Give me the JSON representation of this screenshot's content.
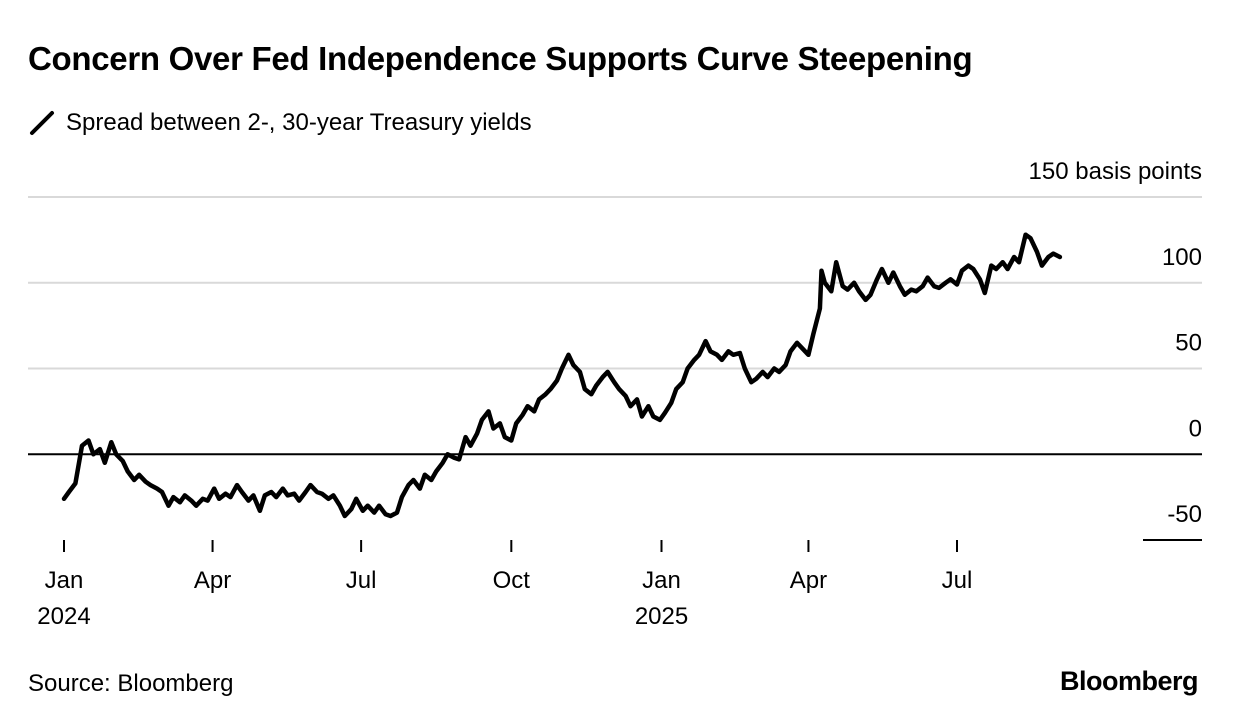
{
  "title": "Concern Over Fed Independence Supports Curve Steepening",
  "legend_label": "Spread between 2-, 30-year Treasury yields",
  "source": "Source: Bloomberg",
  "brand": "Bloomberg",
  "colors": {
    "line": "#000000",
    "grid": "#d9d9d9",
    "zero": "#000000",
    "text": "#000000",
    "background": "#ffffff"
  },
  "chart_data": {
    "type": "line",
    "title": "Concern Over Fed Independence Supports Curve Steepening",
    "series_name": "Spread between 2-, 30-year Treasury yields",
    "unit_label": "150 basis points",
    "ylim": [
      -50,
      150
    ],
    "yticks": [
      {
        "value": 100,
        "label": "100"
      },
      {
        "value": 50,
        "label": "50"
      },
      {
        "value": 0,
        "label": "0"
      },
      {
        "value": -50,
        "label": "-50"
      }
    ],
    "xticks": [
      {
        "date": "2024-01-01",
        "label": "Jan",
        "year": "2024"
      },
      {
        "date": "2024-04-01",
        "label": "Apr",
        "year": ""
      },
      {
        "date": "2024-07-01",
        "label": "Jul",
        "year": ""
      },
      {
        "date": "2024-10-01",
        "label": "Oct",
        "year": ""
      },
      {
        "date": "2025-01-01",
        "label": "Jan",
        "year": "2025"
      },
      {
        "date": "2025-04-01",
        "label": "Apr",
        "year": ""
      },
      {
        "date": "2025-07-01",
        "label": "Jul",
        "year": ""
      }
    ],
    "x_start": "2024-01-01",
    "x_end": "2025-09-30",
    "points": [
      [
        "2024-01-01",
        -26
      ],
      [
        "2024-01-04",
        -22
      ],
      [
        "2024-01-08",
        -17
      ],
      [
        "2024-01-12",
        5
      ],
      [
        "2024-01-16",
        8
      ],
      [
        "2024-01-19",
        0
      ],
      [
        "2024-01-23",
        3
      ],
      [
        "2024-01-26",
        -5
      ],
      [
        "2024-01-30",
        7
      ],
      [
        "2024-02-02",
        0
      ],
      [
        "2024-02-06",
        -4
      ],
      [
        "2024-02-09",
        -10
      ],
      [
        "2024-02-13",
        -15
      ],
      [
        "2024-02-16",
        -12
      ],
      [
        "2024-02-20",
        -16
      ],
      [
        "2024-02-23",
        -18
      ],
      [
        "2024-02-27",
        -20
      ],
      [
        "2024-03-01",
        -22
      ],
      [
        "2024-03-05",
        -30
      ],
      [
        "2024-03-08",
        -25
      ],
      [
        "2024-03-12",
        -28
      ],
      [
        "2024-03-15",
        -24
      ],
      [
        "2024-03-19",
        -27
      ],
      [
        "2024-03-22",
        -30
      ],
      [
        "2024-03-26",
        -26
      ],
      [
        "2024-03-29",
        -27
      ],
      [
        "2024-04-02",
        -20
      ],
      [
        "2024-04-05",
        -26
      ],
      [
        "2024-04-09",
        -23
      ],
      [
        "2024-04-12",
        -25
      ],
      [
        "2024-04-16",
        -18
      ],
      [
        "2024-04-19",
        -22
      ],
      [
        "2024-04-23",
        -27
      ],
      [
        "2024-04-26",
        -24
      ],
      [
        "2024-04-30",
        -33
      ],
      [
        "2024-05-03",
        -24
      ],
      [
        "2024-05-07",
        -22
      ],
      [
        "2024-05-10",
        -25
      ],
      [
        "2024-05-14",
        -20
      ],
      [
        "2024-05-17",
        -24
      ],
      [
        "2024-05-21",
        -23
      ],
      [
        "2024-05-24",
        -27
      ],
      [
        "2024-05-28",
        -22
      ],
      [
        "2024-05-31",
        -18
      ],
      [
        "2024-06-04",
        -22
      ],
      [
        "2024-06-07",
        -23
      ],
      [
        "2024-06-11",
        -26
      ],
      [
        "2024-06-14",
        -24
      ],
      [
        "2024-06-18",
        -30
      ],
      [
        "2024-06-21",
        -36
      ],
      [
        "2024-06-25",
        -32
      ],
      [
        "2024-06-28",
        -26
      ],
      [
        "2024-07-02",
        -33
      ],
      [
        "2024-07-05",
        -30
      ],
      [
        "2024-07-09",
        -34
      ],
      [
        "2024-07-12",
        -30
      ],
      [
        "2024-07-16",
        -35
      ],
      [
        "2024-07-19",
        -36
      ],
      [
        "2024-07-23",
        -34
      ],
      [
        "2024-07-26",
        -25
      ],
      [
        "2024-07-30",
        -18
      ],
      [
        "2024-08-02",
        -15
      ],
      [
        "2024-08-06",
        -20
      ],
      [
        "2024-08-09",
        -12
      ],
      [
        "2024-08-13",
        -15
      ],
      [
        "2024-08-16",
        -10
      ],
      [
        "2024-08-20",
        -5
      ],
      [
        "2024-08-23",
        0
      ],
      [
        "2024-08-27",
        -2
      ],
      [
        "2024-08-30",
        -3
      ],
      [
        "2024-09-03",
        10
      ],
      [
        "2024-09-06",
        5
      ],
      [
        "2024-09-10",
        12
      ],
      [
        "2024-09-13",
        20
      ],
      [
        "2024-09-17",
        25
      ],
      [
        "2024-09-20",
        15
      ],
      [
        "2024-09-24",
        18
      ],
      [
        "2024-09-27",
        10
      ],
      [
        "2024-10-01",
        8
      ],
      [
        "2024-10-04",
        18
      ],
      [
        "2024-10-08",
        23
      ],
      [
        "2024-10-11",
        28
      ],
      [
        "2024-10-15",
        25
      ],
      [
        "2024-10-18",
        32
      ],
      [
        "2024-10-22",
        35
      ],
      [
        "2024-10-25",
        38
      ],
      [
        "2024-10-29",
        43
      ],
      [
        "2024-11-01",
        50
      ],
      [
        "2024-11-05",
        58
      ],
      [
        "2024-11-08",
        52
      ],
      [
        "2024-11-12",
        48
      ],
      [
        "2024-11-15",
        38
      ],
      [
        "2024-11-19",
        35
      ],
      [
        "2024-11-22",
        40
      ],
      [
        "2024-11-26",
        45
      ],
      [
        "2024-11-29",
        48
      ],
      [
        "2024-12-03",
        42
      ],
      [
        "2024-12-06",
        38
      ],
      [
        "2024-12-10",
        34
      ],
      [
        "2024-12-13",
        28
      ],
      [
        "2024-12-17",
        32
      ],
      [
        "2024-12-20",
        22
      ],
      [
        "2024-12-24",
        28
      ],
      [
        "2024-12-27",
        22
      ],
      [
        "2024-12-31",
        20
      ],
      [
        "2025-01-03",
        24
      ],
      [
        "2025-01-07",
        30
      ],
      [
        "2025-01-10",
        38
      ],
      [
        "2025-01-14",
        42
      ],
      [
        "2025-01-17",
        50
      ],
      [
        "2025-01-21",
        55
      ],
      [
        "2025-01-24",
        58
      ],
      [
        "2025-01-28",
        66
      ],
      [
        "2025-01-31",
        60
      ],
      [
        "2025-02-04",
        58
      ],
      [
        "2025-02-07",
        55
      ],
      [
        "2025-02-11",
        60
      ],
      [
        "2025-02-14",
        58
      ],
      [
        "2025-02-18",
        59
      ],
      [
        "2025-02-21",
        50
      ],
      [
        "2025-02-25",
        42
      ],
      [
        "2025-02-28",
        44
      ],
      [
        "2025-03-04",
        48
      ],
      [
        "2025-03-07",
        45
      ],
      [
        "2025-03-11",
        50
      ],
      [
        "2025-03-14",
        48
      ],
      [
        "2025-03-18",
        52
      ],
      [
        "2025-03-21",
        60
      ],
      [
        "2025-03-25",
        65
      ],
      [
        "2025-03-28",
        62
      ],
      [
        "2025-04-01",
        58
      ],
      [
        "2025-04-04",
        70
      ],
      [
        "2025-04-08",
        85
      ],
      [
        "2025-04-09",
        107
      ],
      [
        "2025-04-11",
        100
      ],
      [
        "2025-04-15",
        95
      ],
      [
        "2025-04-18",
        112
      ],
      [
        "2025-04-22",
        98
      ],
      [
        "2025-04-25",
        96
      ],
      [
        "2025-04-29",
        100
      ],
      [
        "2025-05-02",
        95
      ],
      [
        "2025-05-06",
        90
      ],
      [
        "2025-05-09",
        93
      ],
      [
        "2025-05-13",
        102
      ],
      [
        "2025-05-16",
        108
      ],
      [
        "2025-05-20",
        100
      ],
      [
        "2025-05-23",
        106
      ],
      [
        "2025-05-27",
        98
      ],
      [
        "2025-05-30",
        93
      ],
      [
        "2025-06-03",
        96
      ],
      [
        "2025-06-06",
        95
      ],
      [
        "2025-06-10",
        98
      ],
      [
        "2025-06-13",
        103
      ],
      [
        "2025-06-17",
        98
      ],
      [
        "2025-06-20",
        97
      ],
      [
        "2025-06-24",
        100
      ],
      [
        "2025-06-27",
        102
      ],
      [
        "2025-07-01",
        99
      ],
      [
        "2025-07-04",
        107
      ],
      [
        "2025-07-08",
        110
      ],
      [
        "2025-07-11",
        108
      ],
      [
        "2025-07-15",
        102
      ],
      [
        "2025-07-18",
        94
      ],
      [
        "2025-07-22",
        110
      ],
      [
        "2025-07-25",
        108
      ],
      [
        "2025-07-29",
        112
      ],
      [
        "2025-08-01",
        108
      ],
      [
        "2025-08-05",
        115
      ],
      [
        "2025-08-08",
        112
      ],
      [
        "2025-08-12",
        128
      ],
      [
        "2025-08-15",
        126
      ],
      [
        "2025-08-19",
        118
      ],
      [
        "2025-08-22",
        110
      ],
      [
        "2025-08-26",
        115
      ],
      [
        "2025-08-29",
        117
      ],
      [
        "2025-09-02",
        115
      ]
    ]
  }
}
